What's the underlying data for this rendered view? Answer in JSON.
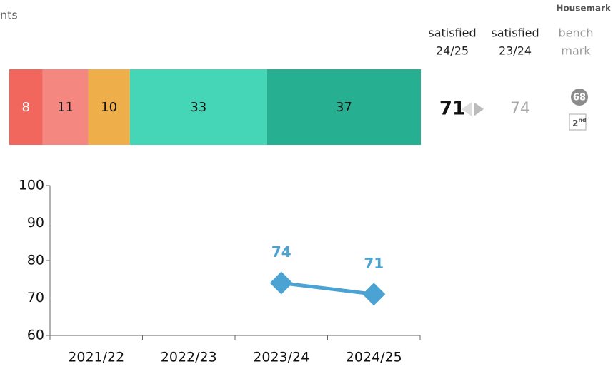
{
  "header_fragment": "nts",
  "logo": "Housemark",
  "columns": [
    {
      "line1": "satisfied",
      "line2": "24/25"
    },
    {
      "line1": "satisfied",
      "line2": "23/24"
    },
    {
      "line1": "bench",
      "line2": "mark"
    }
  ],
  "current": 71,
  "previous": 74,
  "benchmark": 68,
  "rank": "2",
  "rank_suffix": "nd",
  "chart_data": [
    {
      "type": "stacked_bar",
      "values": [
        8,
        11,
        10,
        33,
        37
      ],
      "colors": [
        "#f1675d",
        "#f4877f",
        "#eeaf4b",
        "#45d6b7",
        "#26b091"
      ]
    },
    {
      "type": "line",
      "categories": [
        "2021/22",
        "2022/23",
        "2023/24",
        "2024/25"
      ],
      "series": [
        {
          "color": "#4ba3d3",
          "values": [
            null,
            null,
            74,
            71
          ]
        }
      ],
      "ylim": [
        60,
        100
      ],
      "yticks": [
        60,
        70,
        80,
        90,
        100
      ]
    }
  ]
}
